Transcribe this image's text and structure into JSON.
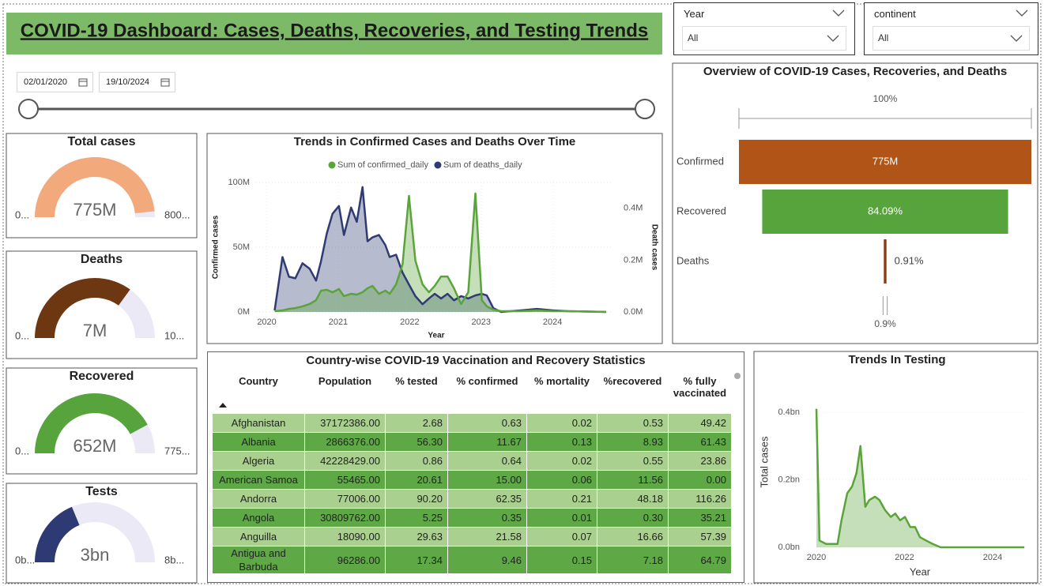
{
  "header": {
    "title": "COVID-19 Dashboard: Cases, Deaths, Recoveries, and Testing Trends"
  },
  "filters": [
    {
      "label": "Year",
      "selected": "All"
    },
    {
      "label": "continent",
      "selected": "All"
    }
  ],
  "date_range": {
    "start": "02/01/2020",
    "end": "19/10/2024"
  },
  "chart_data": [
    {
      "type": "gauge",
      "title": "Total cases",
      "value": 775,
      "value_label": "775M",
      "min": {
        "value": 0,
        "label": "0..."
      },
      "max": {
        "value": 800,
        "label": "800..."
      },
      "color": "#f2a97c",
      "track_color": "#ebe9f5"
    },
    {
      "type": "gauge",
      "title": "Deaths",
      "value": 7,
      "value_label": "7M",
      "min": {
        "value": 0,
        "label": "0..."
      },
      "max": {
        "value": 10,
        "label": "10..."
      },
      "color": "#6d3711",
      "track_color": "#ebe9f5"
    },
    {
      "type": "gauge",
      "title": "Recovered",
      "value": 652,
      "value_label": "652M",
      "min": {
        "value": 0,
        "label": "0..."
      },
      "max": {
        "value": 775,
        "label": "775..."
      },
      "color": "#57a33c",
      "track_color": "#ebe9f5"
    },
    {
      "type": "gauge",
      "title": "Tests",
      "value": 3,
      "value_label": "3bn",
      "min": {
        "value": 0,
        "label": "0b..."
      },
      "max": {
        "value": 8,
        "label": "8b..."
      },
      "color": "#2d3a74",
      "track_color": "#ebe9f5"
    },
    {
      "type": "line",
      "title": "Trends in Confirmed Cases and Deaths Over Time",
      "x_label": "Year",
      "y_label": "Confirmed cases",
      "y2_label": "Death cases",
      "area": true,
      "grid": true,
      "x": [
        2020.11,
        2020.22,
        2020.31,
        2020.4,
        2020.5,
        2020.6,
        2020.69,
        2020.76,
        2020.84,
        2020.92,
        2021.01,
        2021.08,
        2021.18,
        2021.26,
        2021.34,
        2021.41,
        2021.48,
        2021.57,
        2021.66,
        2021.72,
        2021.81,
        2021.9,
        2021.99,
        2022.08,
        2022.18,
        2022.27,
        2022.35,
        2022.44,
        2022.53,
        2022.62,
        2022.72,
        2022.82,
        2022.92,
        2023.01,
        2023.08,
        2023.17,
        2023.28,
        2023.56,
        2023.78,
        2024.0,
        2024.22,
        2024.75
      ],
      "series": [
        {
          "name": "Sum of confirmed_daily",
          "color": "#5aa43a",
          "values": [
            0.6,
            1.2,
            2.4,
            3.0,
            4.3,
            6.1,
            9.1,
            16.5,
            17.1,
            15.2,
            17.7,
            12.2,
            14.0,
            13.4,
            15.2,
            18.3,
            20.1,
            14.0,
            16.5,
            14.0,
            21.3,
            36.6,
            89.6,
            39.6,
            21.3,
            15.2,
            20.1,
            27.4,
            27.4,
            18.3,
            6.1,
            15.2,
            91.5,
            9.1,
            4.3,
            1.8,
            0.6,
            0.6,
            1.2,
            0.6,
            0.6,
            0
          ]
        },
        {
          "name": "Sum of deaths_daily",
          "color": "#2f3b72",
          "axis": "y2",
          "values": [
            0.006,
            0.212,
            0.136,
            0.13,
            0.188,
            0.167,
            0.121,
            0.197,
            0.303,
            0.379,
            0.409,
            0.297,
            0.403,
            0.348,
            0.482,
            0.273,
            0.288,
            0.297,
            0.258,
            0.212,
            0.221,
            0.152,
            0.106,
            0.061,
            0.03,
            0.052,
            0.07,
            0.052,
            0.07,
            0.045,
            0.061,
            0.052,
            0.064,
            0.07,
            0.064,
            0.015,
            0,
            0.006,
            0.012,
            0.006,
            0.003,
            0
          ]
        }
      ],
      "xlim": [
        2019.85,
        2024.85
      ],
      "xticks": [
        2020,
        2021,
        2022,
        2023,
        2024
      ],
      "ylim": [
        0,
        100
      ],
      "yticks": [
        {
          "value": 0,
          "label": "0M"
        },
        {
          "value": 50,
          "label": "50M"
        },
        {
          "value": 100,
          "label": "100M"
        }
      ],
      "y2lim": [
        0,
        0.5
      ],
      "y2ticks": [
        {
          "value": 0,
          "label": "0.0M"
        },
        {
          "value": 0.2,
          "label": "0.2M"
        },
        {
          "value": 0.4,
          "label": "0.4M"
        }
      ]
    },
    {
      "type": "funnel",
      "title": "Overview of COVID-19 Cases, Recoveries, and Deaths",
      "categories": [
        "Confirmed",
        "Recovered",
        "Deaths"
      ],
      "values": [
        100,
        84.09,
        0.91
      ],
      "value_labels": [
        null,
        "84.09%",
        "0.91%"
      ],
      "total": {
        "value": 775,
        "label": "775M"
      },
      "colors": [
        "#b05417",
        "#57a33c",
        "#8a3d12"
      ],
      "scale_top": {
        "value": 100,
        "label": "100%"
      },
      "scale_bottom": {
        "value": 0.9,
        "label": "0.9%"
      }
    },
    {
      "type": "area",
      "title": "Trends In Testing",
      "x_label": "Year",
      "y_label": "Total cases",
      "color": "#5aa43a",
      "x": [
        2020.0,
        2020.07,
        2020.22,
        2020.48,
        2020.57,
        2020.7,
        2020.81,
        2020.91,
        2021.0,
        2021.11,
        2021.2,
        2021.33,
        2021.43,
        2021.56,
        2021.69,
        2021.79,
        2021.9,
        2022.01,
        2022.13,
        2022.24,
        2022.35,
        2022.49,
        2022.64,
        2022.82,
        2024.0,
        2024.72
      ],
      "values": [
        0.41,
        0.02,
        0.01,
        0.01,
        0.08,
        0.16,
        0.18,
        0.22,
        0.3,
        0.12,
        0.14,
        0.15,
        0.14,
        0.11,
        0.09,
        0.1,
        0.08,
        0.09,
        0.06,
        0.06,
        0.03,
        0.02,
        0.01,
        0,
        0,
        0
      ],
      "xlim": [
        2019.8,
        2024.8
      ],
      "xticks": [
        2020,
        2022,
        2024
      ],
      "ylim": [
        0,
        0.45
      ],
      "yticks": [
        {
          "value": 0,
          "label": "0.0bn"
        },
        {
          "value": 0.2,
          "label": "0.2bn"
        },
        {
          "value": 0.4,
          "label": "0.4bn"
        }
      ]
    }
  ],
  "table": {
    "title": "Country-wise COVID-19 Vaccination and Recovery Statistics",
    "columns": [
      "Country",
      "Population",
      "% tested",
      "% confirmed",
      "% mortality",
      "%recovered",
      "% fully vaccinated"
    ],
    "rows": [
      [
        "Afghanistan",
        "37172386.00",
        "2.68",
        "0.63",
        "0.02",
        "0.53",
        "49.42"
      ],
      [
        "Albania",
        "2866376.00",
        "56.30",
        "11.67",
        "0.13",
        "8.93",
        "61.43"
      ],
      [
        "Algeria",
        "42228429.00",
        "0.86",
        "0.64",
        "0.02",
        "0.55",
        "23.86"
      ],
      [
        "American Samoa",
        "55465.00",
        "20.61",
        "15.00",
        "0.06",
        "11.56",
        "0.00"
      ],
      [
        "Andorra",
        "77006.00",
        "90.20",
        "62.35",
        "0.21",
        "48.18",
        "116.26"
      ],
      [
        "Angola",
        "30809762.00",
        "5.25",
        "0.35",
        "0.01",
        "0.30",
        "35.21"
      ],
      [
        "Anguilla",
        "18090.00",
        "29.63",
        "21.58",
        "0.07",
        "16.66",
        "57.39"
      ],
      [
        "Antigua and Barbuda",
        "96286.00",
        "17.34",
        "9.46",
        "0.15",
        "7.18",
        "64.79"
      ]
    ]
  }
}
